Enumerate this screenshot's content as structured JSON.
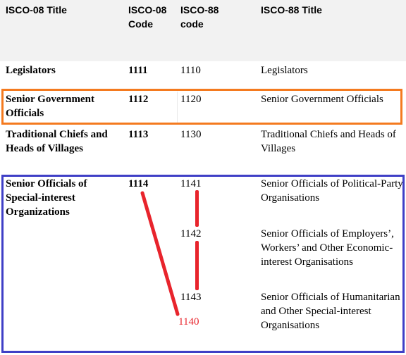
{
  "headers": [
    "ISCO-08 Title",
    "ISCO-08 Code",
    "ISCO-88 code",
    "ISCO-88 Title"
  ],
  "rows": [
    {
      "title08": "Legislators",
      "code08": "1111",
      "code88": [
        "1110"
      ],
      "title88": [
        "Legislators"
      ]
    },
    {
      "title08": "Senior Government Officials",
      "code08": "1112",
      "code88": [
        "1120"
      ],
      "title88": [
        "Senior Government Officials"
      ]
    },
    {
      "title08": "Traditional Chiefs and Heads of Villages",
      "code08": "1113",
      "code88": [
        "1130"
      ],
      "title88": [
        "Traditional Chiefs and Heads of Villages"
      ]
    },
    {
      "title08": "Senior Officials of Special-interest Organizations",
      "code08": "1114",
      "code88": [
        "1141",
        "1142",
        "1143"
      ],
      "title88": [
        "Senior Officials of Political-Party Organisations",
        "Senior Officials of Employers’, Workers’ and Other Economic-interest Organisations",
        "Senior Officials of Humanitarian and Other Special-interest Organisations"
      ]
    }
  ],
  "annotation": {
    "code": "1140",
    "color": "#e8242c"
  },
  "colors": {
    "orange_box": "#f47a1f",
    "blue_box": "#3f3fc6",
    "header_bg": "#f2f2f2"
  }
}
